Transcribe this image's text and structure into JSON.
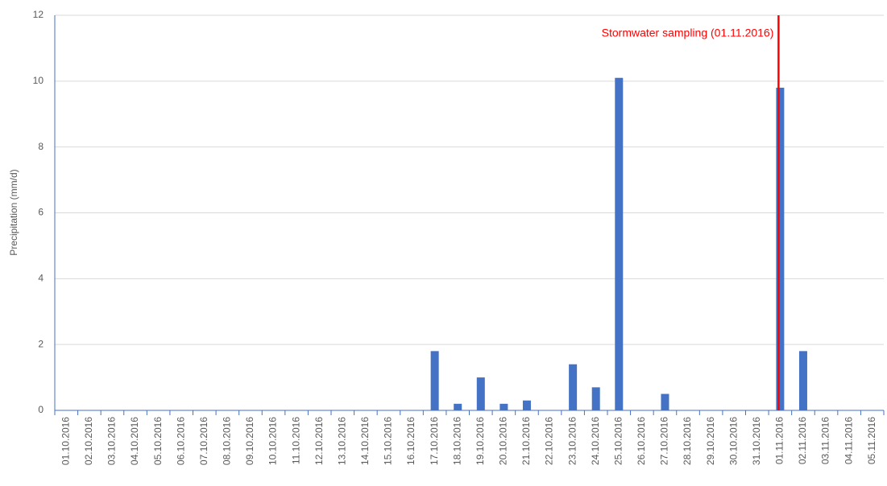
{
  "chart_data": {
    "type": "bar",
    "y_label": "Precipitation (mm/d)",
    "categories": [
      "01.10.2016",
      "02.10.2016",
      "03.10.2016",
      "04.10.2016",
      "05.10.2016",
      "06.10.2016",
      "07.10.2016",
      "08.10.2016",
      "09.10.2016",
      "10.10.2016",
      "11.10.2016",
      "12.10.2016",
      "13.10.2016",
      "14.10.2016",
      "15.10.2016",
      "16.10.2016",
      "17.10.2016",
      "18.10.2016",
      "19.10.2016",
      "20.10.2016",
      "21.10.2016",
      "22.10.2016",
      "23.10.2016",
      "24.10.2016",
      "25.10.2016",
      "26.10.2016",
      "27.10.2016",
      "28.10.2016",
      "29.10.2016",
      "30.10.2016",
      "31.10.2016",
      "01.11.2016",
      "02.11.2016",
      "03.11.2016",
      "04.11.2016",
      "05.11.2016"
    ],
    "values": [
      0,
      0,
      0,
      0,
      0,
      0,
      0,
      0,
      0,
      0,
      0,
      0,
      0,
      0,
      0,
      0,
      1.8,
      0.2,
      1.0,
      0.2,
      0.3,
      0,
      1.4,
      0.7,
      10.1,
      0,
      0.5,
      0,
      0,
      0,
      0,
      9.8,
      1.8,
      0,
      0,
      0
    ],
    "color": "#4472c4",
    "ylim": [
      0,
      12
    ],
    "yticks": [
      0,
      2,
      4,
      6,
      8,
      10,
      12
    ],
    "grid": true,
    "annotation": {
      "text": "Stormwater sampling (01.11.2016)",
      "x": "01.11.2016",
      "color": "#ff0000"
    }
  }
}
